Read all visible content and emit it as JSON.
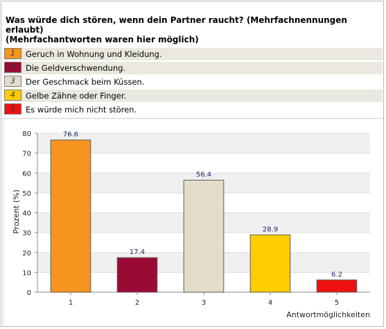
{
  "title": "Was würde dich stören, wenn dein Partner raucht? (Mehrfachnennungen erlaubt)",
  "subtitle": "(Mehrfachantworten waren hier möglich)",
  "legend": [
    {
      "key": "1",
      "label": "Geruch in Wohnung und Kleidung.",
      "color": "#f7941d"
    },
    {
      "key": "2",
      "label": "Die Geldverschwendung.",
      "color": "#9b0a35"
    },
    {
      "key": "3",
      "label": "Der Geschmack beim Küssen.",
      "color": "#e5dccb"
    },
    {
      "key": "4",
      "label": "Gelbe Zähne oder Finger.",
      "color": "#ffcc00"
    },
    {
      "key": "5",
      "label": "Es würde mich nicht stören.",
      "color": "#ee1111"
    }
  ],
  "chart_data": {
    "type": "bar",
    "categories": [
      "1",
      "2",
      "3",
      "4",
      "5"
    ],
    "values": [
      76.6,
      17.4,
      56.4,
      28.9,
      6.2
    ],
    "value_labels": [
      "76.6",
      "17.4",
      "56.4",
      "28.9",
      "6.2"
    ],
    "colors": [
      "#f7941d",
      "#9b0a35",
      "#e5dccb",
      "#ffcc00",
      "#ee1111"
    ],
    "ylabel": "Prozent (%)",
    "xlabel": "Antwortmöglichkeiten",
    "ylim": [
      0,
      80
    ],
    "yticks": [
      0,
      10,
      20,
      30,
      40,
      50,
      60,
      70,
      80
    ],
    "grid": true
  }
}
